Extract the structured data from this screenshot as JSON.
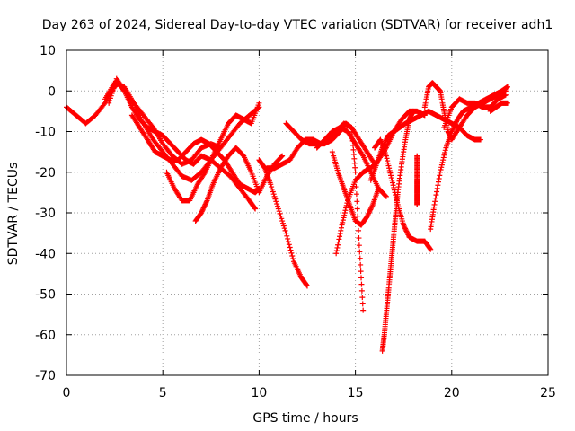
{
  "chart_data": {
    "type": "scatter",
    "title": "Day 263 of 2024, Sidereal Day-to-day VTEC variation (SDTVAR) for receiver adh1",
    "xlabel": "GPS time / hours",
    "ylabel": "SDTVAR / TECUs",
    "xlim": [
      0,
      25
    ],
    "ylim": [
      -70,
      10
    ],
    "xticks": [
      0,
      5,
      10,
      15,
      20,
      25
    ],
    "yticks": [
      10,
      0,
      -10,
      -20,
      -30,
      -40,
      -50,
      -60,
      -70
    ],
    "grid": true,
    "legend": "none",
    "marker": "+",
    "marker_color": "#ff0000",
    "series": [
      {
        "x": [
          0.0,
          0.5,
          1.0,
          1.5,
          2.0,
          2.5,
          2.7,
          3.0,
          3.5,
          4.0,
          4.5,
          5.0,
          5.5,
          6.0,
          6.5,
          7.0,
          7.5,
          8.0
        ],
        "y": [
          -4,
          -6,
          -8,
          -6,
          -3,
          1,
          2,
          0,
          -3,
          -6,
          -9,
          -13,
          -16,
          -18,
          -17,
          -14,
          -13,
          -14
        ]
      },
      {
        "x": [
          2.2,
          2.6,
          3.0,
          3.4,
          3.8,
          4.2,
          4.6,
          5.0,
          5.4,
          5.8,
          6.2,
          6.6,
          7.0,
          7.5,
          8.0,
          8.5,
          9.0,
          9.5,
          9.8
        ],
        "y": [
          -3,
          3,
          0,
          -4,
          -7,
          -9,
          -10,
          -11,
          -13,
          -15,
          -17,
          -18,
          -16,
          -17,
          -19,
          -21,
          -24,
          -27,
          -29
        ]
      },
      {
        "x": [
          2.0,
          2.5,
          3.0,
          3.5,
          4.0,
          4.5,
          5.0,
          5.5,
          6.0,
          6.5,
          7.0,
          7.5,
          8.0,
          8.5,
          9.0,
          9.5,
          10.0
        ],
        "y": [
          -2,
          2,
          1,
          -3,
          -8,
          -12,
          -15,
          -18,
          -21,
          -22,
          -20,
          -17,
          -14,
          -11,
          -8,
          -6,
          -4
        ]
      },
      {
        "x": [
          3.4,
          3.8,
          4.2,
          4.6,
          5.0,
          5.4,
          5.8,
          6.2,
          6.6,
          7.0,
          7.4,
          7.8,
          8.2,
          8.6,
          9.0,
          9.4,
          9.8,
          10.0
        ],
        "y": [
          -6,
          -9,
          -12,
          -15,
          -16,
          -17,
          -17,
          -15,
          -13,
          -12,
          -13,
          -15,
          -17,
          -20,
          -23,
          -24,
          -25,
          -24
        ]
      },
      {
        "x": [
          5.2,
          5.6,
          6.0,
          6.4,
          6.8,
          7.2,
          7.6,
          8.0,
          8.4,
          8.8,
          9.2,
          9.6,
          10.0
        ],
        "y": [
          -20,
          -24,
          -27,
          -27,
          -23,
          -20,
          -16,
          -12,
          -8,
          -6,
          -7,
          -8,
          -3
        ]
      },
      {
        "x": [
          6.7,
          7.0,
          7.3,
          7.6,
          8.0,
          8.4,
          8.8,
          9.2,
          9.6,
          10.0,
          10.4,
          10.8,
          11.2
        ],
        "y": [
          -32,
          -30,
          -27,
          -23,
          -19,
          -16,
          -14,
          -16,
          -20,
          -25,
          -21,
          -18,
          -16
        ]
      },
      {
        "x": [
          10.0,
          10.3,
          10.6,
          11.0,
          11.4,
          11.8,
          12.2,
          12.5
        ],
        "y": [
          -17,
          -19,
          -23,
          -29,
          -35,
          -42,
          -46,
          -48
        ]
      },
      {
        "x": [
          10.4,
          10.8,
          11.2,
          11.6,
          12.0,
          12.4,
          12.8,
          13.2,
          13.6,
          14.0,
          14.4,
          14.8,
          15.2,
          15.6,
          16.0
        ],
        "y": [
          -19,
          -19,
          -18,
          -17,
          -14,
          -12,
          -12,
          -13,
          -12,
          -10,
          -8,
          -9,
          -12,
          -15,
          -18
        ]
      },
      {
        "x": [
          11.4,
          11.8,
          12.2,
          12.6,
          13.0,
          13.4,
          13.8,
          14.2,
          14.5,
          14.8,
          15.0,
          15.2,
          15.4
        ],
        "y": [
          -8,
          -10,
          -12,
          -13,
          -13,
          -13,
          -12,
          -10,
          -8,
          -9,
          -20,
          -38,
          -54
        ]
      },
      {
        "x": [
          13.0,
          13.4,
          13.8,
          14.2,
          14.6,
          15.0,
          15.4,
          15.8,
          16.2,
          16.6
        ],
        "y": [
          -14,
          -12,
          -10,
          -9,
          -10,
          -13,
          -16,
          -20,
          -24,
          -26
        ]
      },
      {
        "x": [
          13.8,
          14.1,
          14.4,
          14.7,
          15.0,
          15.3,
          15.6,
          15.9,
          16.2
        ],
        "y": [
          -15,
          -20,
          -24,
          -28,
          -32,
          -33,
          -31,
          -28,
          -24
        ]
      },
      {
        "x": [
          14.0,
          14.3,
          14.6,
          15.0,
          15.4,
          15.8,
          16.2,
          16.6,
          17.0,
          17.4,
          17.8,
          18.2,
          18.6
        ],
        "y": [
          -40,
          -33,
          -27,
          -22,
          -20,
          -19,
          -17,
          -14,
          -10,
          -7,
          -5,
          -5,
          -6
        ]
      },
      {
        "x": [
          16.4,
          16.5,
          16.6,
          16.7,
          16.8,
          16.9,
          17.0,
          17.1,
          17.2,
          17.4,
          17.6,
          17.8,
          18.0
        ],
        "y": [
          -64,
          -60,
          -55,
          -50,
          -45,
          -40,
          -35,
          -30,
          -25,
          -18,
          -12,
          -7,
          -5
        ]
      },
      {
        "x": [
          15.8,
          16.1,
          16.4,
          16.7,
          17.0,
          17.3,
          17.6,
          18.0,
          18.4,
          18.8,
          19.2,
          19.6,
          20.0,
          20.4,
          20.8,
          21.2,
          21.5
        ],
        "y": [
          -22,
          -18,
          -14,
          -11,
          -10,
          -9,
          -8,
          -7,
          -6,
          -5,
          -6,
          -7,
          -8,
          -9,
          -11,
          -12,
          -12
        ]
      },
      {
        "x": [
          16.0,
          16.3,
          16.6,
          16.9,
          17.2,
          17.5,
          17.8,
          18.2,
          18.6,
          18.9
        ],
        "y": [
          -14,
          -12,
          -16,
          -22,
          -28,
          -33,
          -36,
          -37,
          -37,
          -39
        ]
      },
      {
        "x": [
          18.6,
          18.8,
          19.0,
          19.2,
          19.4,
          19.6,
          19.8,
          20.0,
          20.4,
          20.8,
          21.2,
          21.6,
          22.0,
          22.4,
          22.8
        ],
        "y": [
          -4,
          1,
          2,
          1,
          0,
          -5,
          -10,
          -12,
          -9,
          -6,
          -4,
          -3,
          -2,
          -1,
          0
        ]
      },
      {
        "x": [
          18.9,
          19.1,
          19.4,
          19.7,
          20.0,
          20.3,
          20.6,
          21.0,
          21.4,
          21.8,
          22.2,
          22.6,
          22.9
        ],
        "y": [
          -34,
          -28,
          -20,
          -14,
          -10,
          -7,
          -5,
          -4,
          -3,
          -2,
          -1,
          0,
          1
        ]
      },
      {
        "x": [
          19.6,
          20.0,
          20.4,
          20.8,
          21.2,
          21.6,
          22.0,
          22.4,
          22.8
        ],
        "y": [
          -9,
          -4,
          -2,
          -3,
          -3,
          -4,
          -4,
          -2,
          -1
        ]
      },
      {
        "x": [
          18.2,
          18.2,
          18.2,
          18.2,
          18.2,
          18.2
        ],
        "y": [
          -16,
          -19,
          -22,
          -24,
          -26,
          -28
        ]
      },
      {
        "x": [
          22.0,
          22.3,
          22.6,
          22.9
        ],
        "y": [
          -5,
          -4,
          -3,
          -3
        ]
      }
    ]
  }
}
